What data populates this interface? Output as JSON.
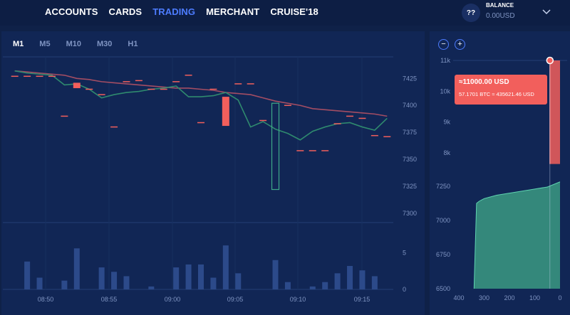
{
  "nav": {
    "items": [
      {
        "label": "ACCOUNTS"
      },
      {
        "label": "CARDS"
      },
      {
        "label": "TRADING"
      },
      {
        "label": "MERCHANT"
      },
      {
        "label": "CRUISE'18"
      }
    ],
    "active": "TRADING"
  },
  "account": {
    "help_label": "??",
    "balance_label": "BALANCE",
    "balance_value": "0.00USD"
  },
  "timeframes": [
    {
      "label": "M1"
    },
    {
      "label": "M5"
    },
    {
      "label": "M10"
    },
    {
      "label": "M30"
    },
    {
      "label": "H1"
    }
  ],
  "zoom": {
    "minus": "−",
    "plus": "+"
  },
  "tooltip": {
    "price": "≈11000.00 USD",
    "detail": "57.1701 BTC ≈ 435621.46 USD"
  },
  "colors": {
    "up": "#3fa989",
    "down": "#f25f5c",
    "ma_red": "#a34d63",
    "ma_green": "#2f8a6e",
    "grid": "#243d75",
    "bg": "#0f2148"
  },
  "chart_data": [
    {
      "type": "candlestick",
      "x_ticks": [
        "08:50",
        "08:55",
        "09:00",
        "09:05",
        "09:10",
        "09:15"
      ],
      "price_ticks": [
        7425,
        7400,
        7375,
        7350,
        7325,
        7300
      ],
      "price_range": [
        7292,
        7445
      ],
      "volume_ticks": [
        5,
        0
      ],
      "volume_range": [
        0,
        6.5
      ],
      "candles": [
        {
          "o": 7427,
          "c": 7427,
          "v": 0
        },
        {
          "o": 7427,
          "c": 7427,
          "v": 3.8
        },
        {
          "o": 7427,
          "c": 7427,
          "v": 1.6
        },
        {
          "o": 7427,
          "c": 7427,
          "v": 0
        },
        {
          "o": 7390,
          "c": 7390,
          "v": 1.2
        },
        {
          "o": 7421,
          "c": 7416,
          "v": 5.6
        },
        {
          "o": 7415,
          "c": 7415,
          "v": 0
        },
        {
          "o": 7410,
          "c": 7410,
          "v": 3.0
        },
        {
          "o": 7380,
          "c": 7380,
          "v": 2.4
        },
        {
          "o": 7422,
          "c": 7422,
          "v": 1.8
        },
        {
          "o": 7423,
          "c": 7423,
          "v": 0
        },
        {
          "o": 7415,
          "c": 7415,
          "v": 0.4
        },
        {
          "o": 7415,
          "c": 7415,
          "v": 0
        },
        {
          "o": 7422,
          "c": 7422,
          "v": 3.0
        },
        {
          "o": 7428,
          "c": 7428,
          "v": 3.4
        },
        {
          "o": 7384,
          "c": 7384,
          "v": 3.4
        },
        {
          "o": 7415,
          "c": 7415,
          "v": 1.6
        },
        {
          "o": 7408,
          "c": 7381,
          "v": 6.0
        },
        {
          "o": 7420,
          "c": 7420,
          "v": 2.2
        },
        {
          "o": 7420,
          "c": 7420,
          "v": 0
        },
        {
          "o": 7386,
          "c": 7386,
          "v": 0
        },
        {
          "o": 7322,
          "c": 7402,
          "v": 4.0
        },
        {
          "o": 7400,
          "c": 7400,
          "v": 1.0
        },
        {
          "o": 7358,
          "c": 7358,
          "v": 0
        },
        {
          "o": 7358,
          "c": 7358,
          "v": 0.4
        },
        {
          "o": 7358,
          "c": 7358,
          "v": 1.0
        },
        {
          "o": 7383,
          "c": 7383,
          "v": 2.2
        },
        {
          "o": 7390,
          "c": 7390,
          "v": 3.2
        },
        {
          "o": 7388,
          "c": 7388,
          "v": 2.6
        },
        {
          "o": 7372,
          "c": 7372,
          "v": 1.8
        },
        {
          "o": 7371,
          "c": 7371,
          "v": 0
        }
      ],
      "ma_long": [
        7432,
        7431,
        7430,
        7429,
        7428,
        7425,
        7424,
        7422,
        7421,
        7420,
        7419,
        7418,
        7417,
        7416,
        7416,
        7415,
        7414,
        7412,
        7411,
        7410,
        7407,
        7404,
        7402,
        7400,
        7397,
        7396,
        7395,
        7394,
        7393,
        7392,
        7390
      ],
      "ma_short": [
        7432,
        7430,
        7429,
        7428,
        7419,
        7420,
        7415,
        7407,
        7410,
        7412,
        7413,
        7415,
        7416,
        7418,
        7408,
        7408,
        7409,
        7412,
        7405,
        7380,
        7385,
        7378,
        7374,
        7368,
        7376,
        7380,
        7383,
        7384,
        7380,
        7377,
        7388
      ]
    },
    {
      "type": "area",
      "title": "",
      "y_ticks": [
        "11k",
        "10k",
        "9k",
        "8k",
        "7250",
        "7000",
        "6750",
        "6500"
      ],
      "x_ticks": [
        "400",
        "300",
        "200",
        "100",
        "0"
      ],
      "x_range": [
        400,
        0
      ],
      "bids": {
        "x": [
          340,
          330,
          320,
          310,
          300,
          280,
          250,
          200,
          150,
          100,
          50,
          0
        ],
        "y": [
          6500,
          7125,
          7140,
          7150,
          7160,
          7170,
          7185,
          7200,
          7215,
          7230,
          7245,
          7350
        ]
      },
      "asks": {
        "x": [
          40,
          40,
          10,
          0
        ],
        "y": [
          11000,
          7750,
          7750,
          7300
        ]
      }
    }
  ]
}
